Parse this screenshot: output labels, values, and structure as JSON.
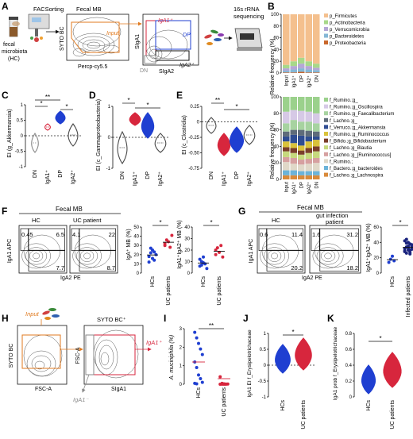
{
  "panels": {
    "A": "A",
    "B": "B",
    "C": "C",
    "D": "D",
    "E": "E",
    "F": "F",
    "G": "G",
    "H": "H",
    "I": "I",
    "J": "J",
    "K": "K"
  },
  "A": {
    "fecal_line1": "fecal",
    "fecal_line2": "microbiota",
    "fecal_line3": "(HC)",
    "facs": "FACSorting",
    "fecal_mb": "Fecal MB",
    "input": "Input",
    "y_label": "SYTO BC",
    "x_label": "Percp-cy5.5",
    "sIgA_y": "SIgA1",
    "sIgA_x": "SIgA2",
    "gate_iga1": "IgA1⁺",
    "gate_dp": "DP",
    "gate_iga2": "IgA2⁺",
    "gate_dn": "DN",
    "seq_line1": "16s rRNA",
    "seq_line2": "sequencing"
  },
  "B": {
    "y_label": "Relative frequency (%)",
    "ticks": [
      "100",
      "80",
      "60",
      "40",
      "20",
      "0"
    ],
    "categories": [
      "Input",
      "IgA1⁺",
      "DP",
      "IgA2⁺",
      "DN"
    ],
    "top_legend": [
      {
        "label": "p_Firmicutes",
        "color": "#f4c08e"
      },
      {
        "label": "p_Actinobacteria",
        "color": "#a8d88a"
      },
      {
        "label": "p_Verrucomicrobia",
        "color": "#b5a7d6"
      },
      {
        "label": "p_Bacteroidetes",
        "color": "#85b7d6"
      },
      {
        "label": "p_Proteobacteria",
        "color": "#c9672b"
      }
    ],
    "bottom_legend": [
      {
        "label": "f_Rumino.;g_",
        "color": "#9bd18c"
      },
      {
        "label": "f_Rumino.;g_Oscillospira",
        "color": "#d6c9e6"
      },
      {
        "label": "f_Rumino.;g_Faecalibacterium",
        "color": "#a7d3a0"
      },
      {
        "label": "f_Lachno.;g_",
        "color": "#5f6c7a"
      },
      {
        "label": "f_Verruco.;g_Akkermansia",
        "color": "#2f4d92"
      },
      {
        "label": "f_Rumino.;g_Ruminococcus",
        "color": "#d9c23a"
      },
      {
        "label": "f_Bifido.;g_Bifidobacterium",
        "color": "#7a3e2a"
      },
      {
        "label": "f_Lachno.;g_Blautia",
        "color": "#c6d97d"
      },
      {
        "label": "f_Lachno.;g_[Ruminococcus]",
        "color": "#d6a0a0"
      },
      {
        "label": "f_Rumino.;",
        "color": "#e0d8c8"
      },
      {
        "label": "f_Bactero.;g_bacteroides",
        "color": "#6bb3d9"
      },
      {
        "label": "f_Lachno.;g_Lachnospira",
        "color": "#d98a3a"
      }
    ]
  },
  "C": {
    "y_label": "EI (g_Akkermansia)",
    "ticks": [
      "1",
      "0.5",
      "0",
      "-0.5",
      "-1"
    ],
    "categories": [
      "DN",
      "IgA1⁺",
      "DP",
      "IgA2⁺"
    ],
    "sig": [
      "**",
      "*",
      "*"
    ]
  },
  "D": {
    "y_label": "EI (c_Gammaproteobacteria)",
    "ticks": [
      "1",
      "0",
      "-1"
    ],
    "categories": [
      "DN",
      "IgA1⁺",
      "DP",
      "IgA2⁺"
    ],
    "sig": [
      "*",
      "*"
    ]
  },
  "E": {
    "y_label": "EI (c_Clostridia)",
    "ticks": [
      "0.25",
      "0",
      "-0.25",
      "-0.50",
      "-0.75"
    ],
    "categories": [
      "DN",
      "IgA1⁺",
      "DP",
      "IgA2⁺"
    ],
    "sig": [
      "**",
      "*"
    ]
  },
  "F": {
    "title": "Fecal MB",
    "hc": "HC",
    "uc": "UC patient",
    "y_label": "IgA1 APC",
    "x_label": "IgA2 PE",
    "hc_vals": [
      "0.45",
      "6.5",
      "7.7"
    ],
    "uc_vals": [
      "4.1",
      "22",
      "8.7"
    ],
    "plot1_ylabel": "IgA⁺ MB (%)",
    "plot1_ticks": [
      "50",
      "40",
      "30",
      "20",
      "10",
      "0"
    ],
    "plot2_ylabel": "IgA1⁺IgA2⁺ MB (%)",
    "plot2_ticks": [
      "40",
      "30",
      "20",
      "10",
      "0"
    ],
    "groups": [
      "HCs",
      "UC patients"
    ],
    "sig": "*"
  },
  "G": {
    "title": "Fecal MB",
    "hc": "HC",
    "patient1": "gut infection",
    "patient2": "patient",
    "y_label": "IgA1 APC",
    "x_label": "IgA2 PE",
    "hc_vals": [
      "0.6",
      "11.4",
      "20.2"
    ],
    "pt_vals": [
      "1.6",
      "31.2",
      "18.2"
    ],
    "plot_ylabel": "IgA1⁺IgA2⁺ MB (%)",
    "ticks": [
      "60",
      "40",
      "20",
      "0"
    ],
    "groups": [
      "HCs",
      "Infected patients"
    ],
    "sig": "*"
  },
  "H": {
    "input": "Input",
    "y1": "SYTO BC",
    "x1": "FSC-A",
    "gate_title": "SYTO BC⁺",
    "y2": "FSC-A",
    "x2": "SIgA1",
    "pos": "IgA1⁺",
    "neg": "IgA1⁻"
  },
  "I": {
    "y_label": "A. muciniphila (%)",
    "ticks": [
      "3",
      "2",
      "1",
      "0"
    ],
    "groups": [
      "HCs",
      "UC patients"
    ],
    "sig": "**"
  },
  "J": {
    "y_label": "IgA1 EI f_Erysipelotrichaceae",
    "ticks": [
      "1",
      "0.5",
      "0",
      "-0.5",
      "-1"
    ],
    "groups": [
      "HCs",
      "UC patients"
    ],
    "sig": "*"
  },
  "K": {
    "y_label": "IgA1 prob f_Erysipelotrichaceae",
    "ticks": [
      "0.8",
      "0.6",
      "0.4",
      "0.2",
      "0"
    ],
    "groups": [
      "HCs",
      "UC patients"
    ],
    "sig": "*"
  },
  "colors": {
    "orange": "#e07a1f",
    "red": "#d7263d",
    "blue": "#1f3fd1",
    "navy": "#1a237e",
    "dark": "#4a4a4a",
    "grey": "#8a8a8a"
  }
}
